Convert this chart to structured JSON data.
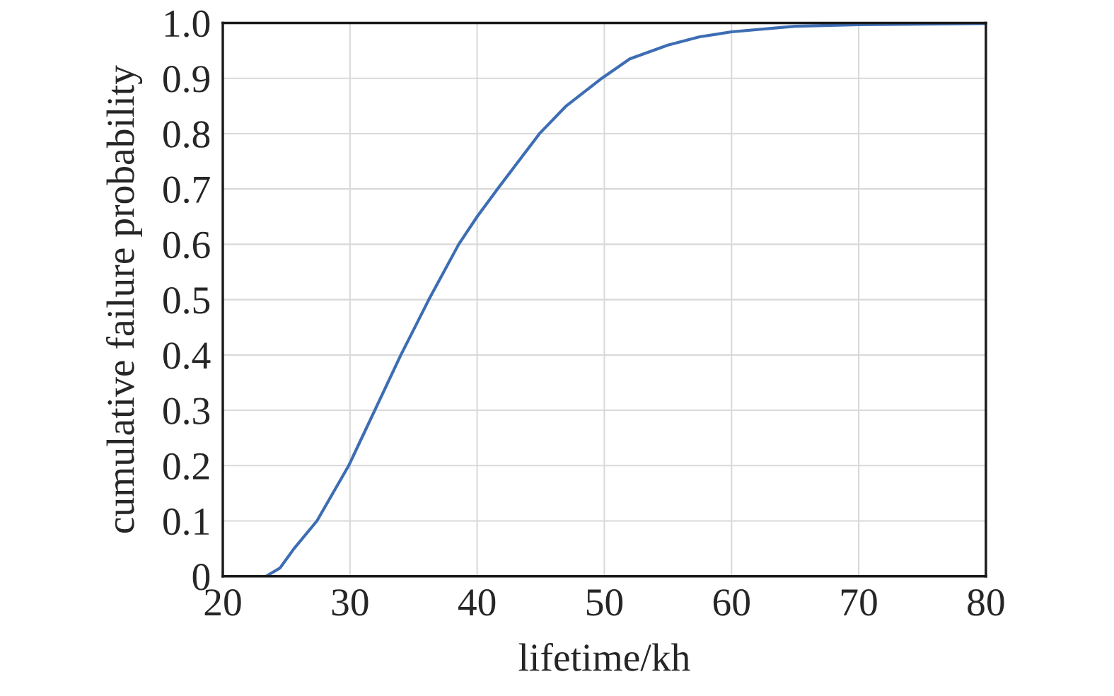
{
  "chart_data": {
    "type": "line",
    "xlabel": "lifetime/kh",
    "ylabel": "cumulative failure probability",
    "x": [
      23.4,
      24.5,
      25.6,
      27.4,
      29.9,
      31.95,
      34.0,
      36.2,
      38.55,
      40,
      41.6,
      44.9,
      47,
      49.8,
      52,
      55,
      57.5,
      60,
      65,
      70,
      80
    ],
    "series": [
      {
        "color": "#3d6db3",
        "values": [
          0,
          0.015,
          0.05,
          0.1,
          0.2,
          0.3,
          0.4,
          0.5,
          0.6,
          0.65,
          0.7,
          0.8,
          0.85,
          0.9,
          0.935,
          0.96,
          0.975,
          0.984,
          0.994,
          0.997,
          0.999
        ]
      }
    ],
    "xlim": [
      20,
      80
    ],
    "xticks": [
      20,
      30,
      40,
      50,
      60,
      70,
      80
    ],
    "ylim": [
      0,
      1
    ],
    "yticks": [
      0,
      0.1,
      0.2,
      0.3,
      0.4,
      0.5,
      0.6,
      0.7,
      0.8,
      0.9,
      {
        "value": 1,
        "label": "1.0"
      }
    ],
    "grid": true
  }
}
